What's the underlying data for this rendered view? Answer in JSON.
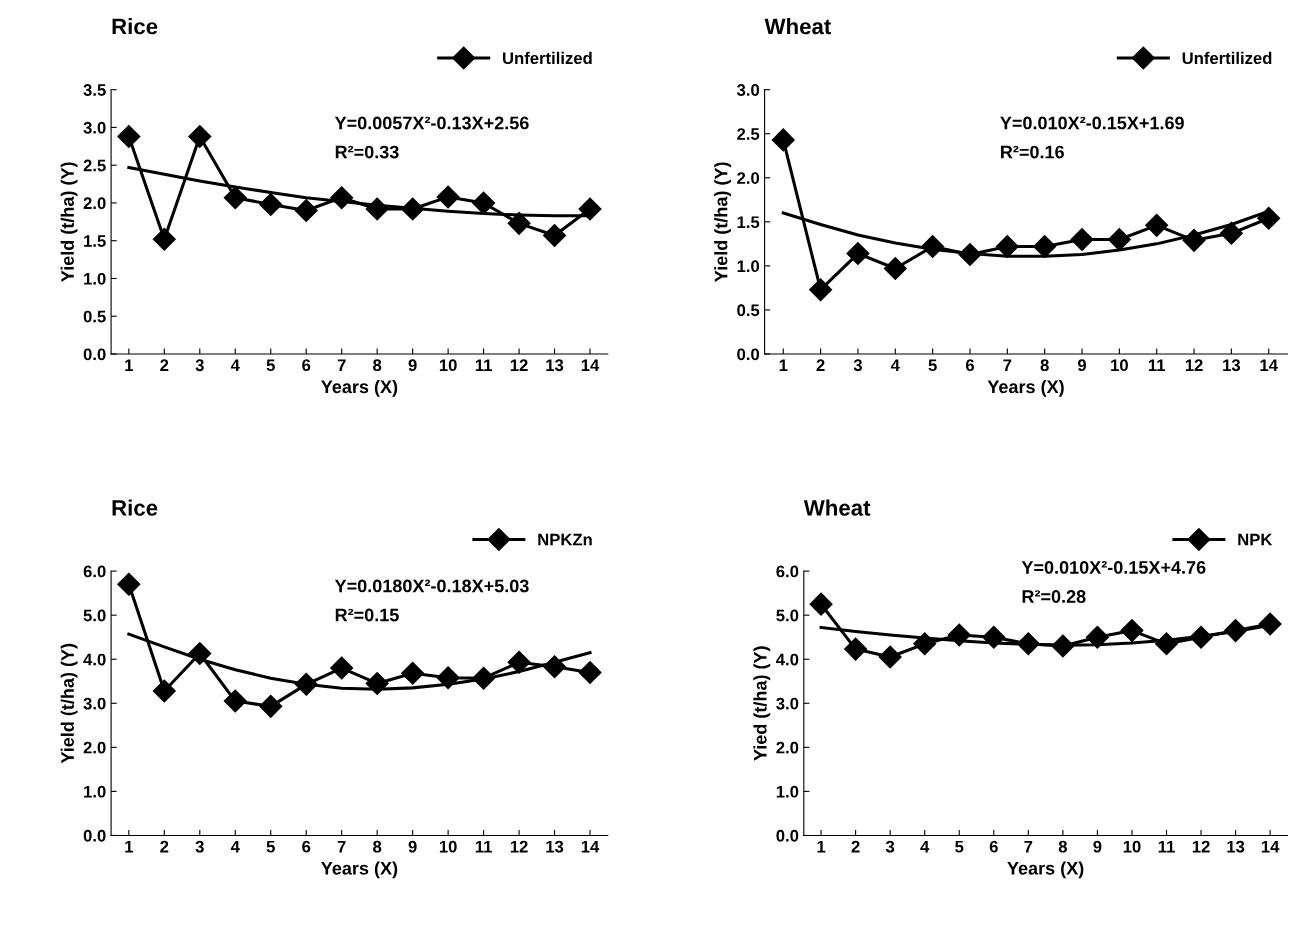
{
  "chart_data": [
    {
      "type": "line",
      "title": "Rice",
      "xlabel": "Years (X)",
      "ylabel": "Yield (t/ha) (Y)",
      "categories": [
        "1",
        "2",
        "3",
        "4",
        "5",
        "6",
        "7",
        "8",
        "9",
        "10",
        "11",
        "12",
        "13",
        "14"
      ],
      "ylim": [
        0.0,
        3.5
      ],
      "yticks": [
        {
          "value": 0,
          "label": "0.0"
        },
        0.5,
        {
          "value": 1,
          "label": "1.0"
        },
        1.5,
        {
          "value": 2,
          "label": "2.0"
        },
        2.5,
        {
          "value": 3,
          "label": "3.0"
        },
        3.5
      ],
      "grid": false,
      "legend": "top right",
      "marker": "diamond",
      "line_style": "solid",
      "series": [
        {
          "name": "Unfertilized",
          "color": "#000000",
          "values": [
            2.88,
            1.52,
            2.88,
            2.07,
            1.98,
            1.9,
            2.07,
            1.92,
            1.92,
            2.08,
            2.0,
            1.73,
            1.57,
            1.92
          ]
        },
        {
          "type": "line",
          "color": "#000000",
          "marker": "none",
          "values": [
            2.47,
            2.38,
            2.29,
            2.21,
            2.14,
            2.07,
            2.02,
            1.97,
            1.93,
            1.89,
            1.86,
            1.84,
            1.83,
            1.83
          ]
        }
      ],
      "annotations": [
        "Y=0.0057X²-0.13X+2.56",
        "R²=0.33"
      ]
    },
    {
      "type": "line",
      "title": "Wheat",
      "xlabel": "Years (X)",
      "ylabel": "Yield (t/ha) (Y)",
      "categories": [
        "1",
        "2",
        "3",
        "4",
        "5",
        "6",
        "7",
        "8",
        "9",
        "10",
        "11",
        "12",
        "13",
        "14"
      ],
      "ylim": [
        0.0,
        3.0
      ],
      "yticks": [
        {
          "value": 0,
          "label": "0.0"
        },
        0.5,
        {
          "value": 1,
          "label": "1.0"
        },
        1.5,
        {
          "value": 2,
          "label": "2.0"
        },
        2.5,
        {
          "value": 3,
          "label": "3.0"
        }
      ],
      "grid": false,
      "legend": "top right",
      "marker": "diamond",
      "line_style": "solid",
      "series": [
        {
          "name": "Unfertilized",
          "color": "#000000",
          "values": [
            2.43,
            0.73,
            1.14,
            0.97,
            1.22,
            1.13,
            1.22,
            1.22,
            1.3,
            1.3,
            1.46,
            1.29,
            1.37,
            1.54
          ]
        },
        {
          "type": "line",
          "color": "#000000",
          "marker": "none",
          "values": [
            1.6,
            1.47,
            1.35,
            1.26,
            1.19,
            1.14,
            1.11,
            1.11,
            1.13,
            1.18,
            1.25,
            1.35,
            1.47,
            1.62
          ]
        }
      ],
      "annotations": [
        "Y=0.010X²-0.15X+1.69",
        "R²=0.16"
      ]
    },
    {
      "type": "line",
      "title": "Rice",
      "xlabel": "Years (X)",
      "ylabel": "Yield (t/ha) (Y)",
      "categories": [
        "1",
        "2",
        "3",
        "4",
        "5",
        "6",
        "7",
        "8",
        "9",
        "10",
        "11",
        "12",
        "13",
        "14"
      ],
      "ylim": [
        0.0,
        6.0
      ],
      "yticks": [
        {
          "value": 0,
          "label": "0.0"
        },
        {
          "value": 1,
          "label": "1.0"
        },
        {
          "value": 2,
          "label": "2.0"
        },
        {
          "value": 3,
          "label": "3.0"
        },
        {
          "value": 4,
          "label": "4.0"
        },
        {
          "value": 5,
          "label": "5.0"
        },
        {
          "value": 6,
          "label": "6.0"
        }
      ],
      "grid": false,
      "legend": "top right",
      "marker": "diamond",
      "line_style": "solid",
      "series": [
        {
          "name": "NPKZn",
          "color": "#000000",
          "values": [
            5.7,
            3.28,
            4.13,
            3.05,
            2.93,
            3.43,
            3.8,
            3.45,
            3.68,
            3.58,
            3.57,
            3.93,
            3.83,
            3.7
          ]
        },
        {
          "type": "line",
          "color": "#000000",
          "marker": "none",
          "values": [
            4.57,
            4.28,
            4.0,
            3.76,
            3.57,
            3.43,
            3.34,
            3.32,
            3.35,
            3.43,
            3.55,
            3.72,
            3.93,
            4.15
          ]
        }
      ],
      "annotations": [
        "Y=0.0180X²-0.18X+5.03",
        "R²=0.15"
      ]
    },
    {
      "type": "line",
      "title": "Wheat",
      "xlabel": "Years (X)",
      "ylabel": "Yied (t/ha) (Y)",
      "categories": [
        "1",
        "2",
        "3",
        "4",
        "5",
        "6",
        "7",
        "8",
        "9",
        "10",
        "11",
        "12",
        "13",
        "14"
      ],
      "ylim": [
        0.0,
        6.0
      ],
      "yticks": [
        {
          "value": 0,
          "label": "0.0"
        },
        {
          "value": 1,
          "label": "1.0"
        },
        {
          "value": 2,
          "label": "2.0"
        },
        {
          "value": 3,
          "label": "3.0"
        },
        {
          "value": 4,
          "label": "4.0"
        },
        {
          "value": 5,
          "label": "5.0"
        },
        {
          "value": 6,
          "label": "6.0"
        }
      ],
      "grid": false,
      "legend": "top right",
      "marker": "diamond",
      "line_style": "solid",
      "series": [
        {
          "name": "NPK",
          "color": "#000000",
          "values": [
            5.25,
            4.23,
            4.05,
            4.35,
            4.55,
            4.5,
            4.35,
            4.3,
            4.5,
            4.65,
            4.35,
            4.5,
            4.65,
            4.8
          ]
        },
        {
          "type": "line",
          "color": "#000000",
          "marker": "none",
          "values": [
            4.72,
            4.63,
            4.55,
            4.48,
            4.42,
            4.37,
            4.34,
            4.32,
            4.33,
            4.37,
            4.43,
            4.52,
            4.63,
            4.77
          ]
        }
      ],
      "annotations": [
        "Y=0.010X²-0.15X+4.76",
        "R²=0.28"
      ]
    }
  ]
}
